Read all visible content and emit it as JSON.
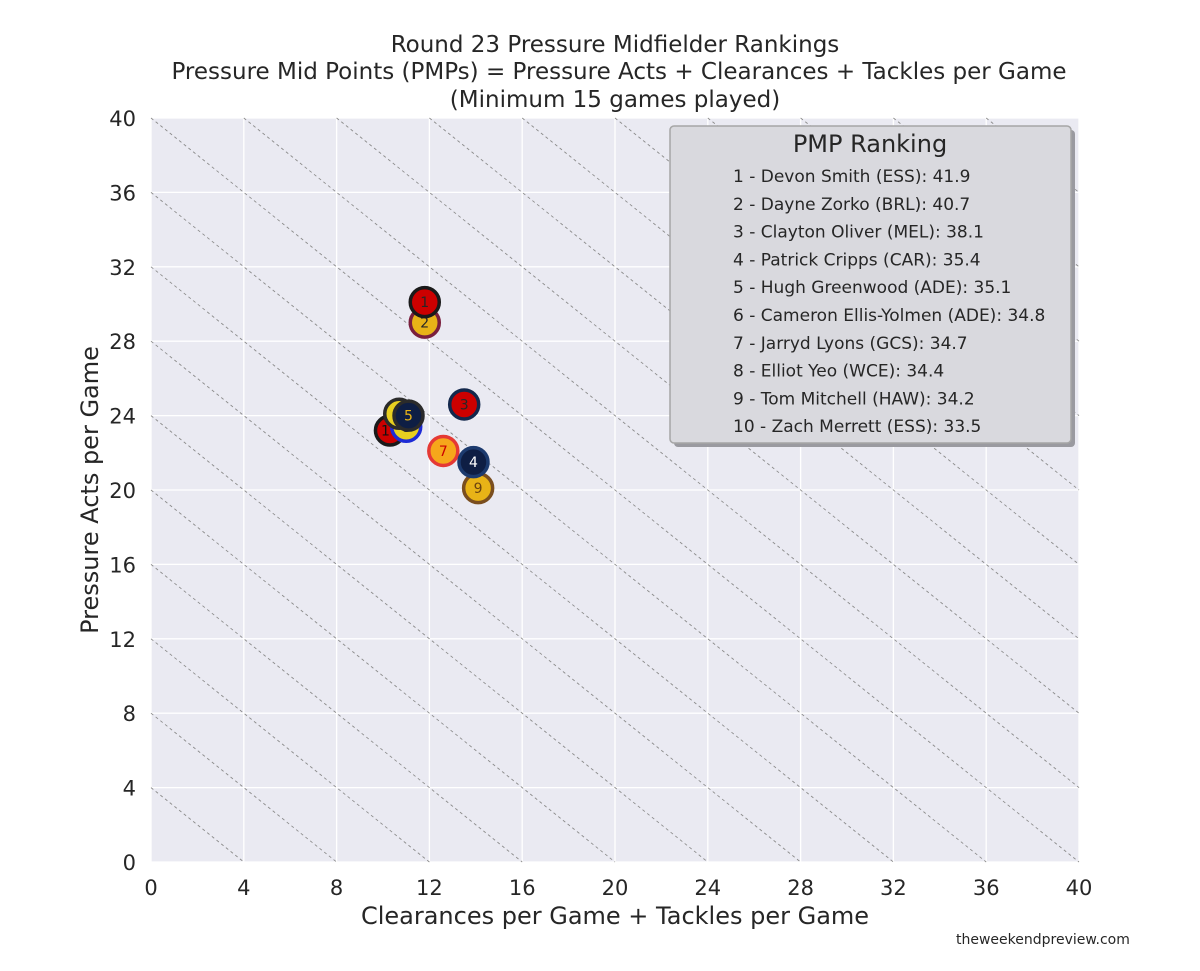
{
  "chart_data": {
    "type": "scatter",
    "title": [
      "Round 23 Pressure Midfielder Rankings",
      "Pressure Mid Points (PMPs) = Pressure Acts + Clearances + Tackles per Game",
      "(Minimum 15 games played)"
    ],
    "xlabel": "Clearances per Game + Tackles per Game",
    "ylabel": "Pressure Acts per Game",
    "xlim": [
      0,
      40
    ],
    "ylim": [
      0,
      40
    ],
    "xticks": [
      "0",
      "4",
      "8",
      "12",
      "16",
      "20",
      "24",
      "28",
      "32",
      "36",
      "40"
    ],
    "yticks": [
      "0",
      "4",
      "8",
      "12",
      "16",
      "20",
      "24",
      "28",
      "32",
      "36",
      "40"
    ],
    "grid": true,
    "iso_lines": [
      4,
      8,
      12,
      16,
      20,
      24,
      28,
      32,
      36,
      40,
      44,
      48,
      52,
      56,
      60,
      64,
      68,
      72,
      76,
      80
    ],
    "points": [
      {
        "label": "1",
        "x": 11.8,
        "y": 30.1,
        "fill": "#cc0000",
        "edge": "#1a1a1a",
        "text": "#262626"
      },
      {
        "label": "2",
        "x": 11.8,
        "y": 29.0,
        "fill": "#e8b317",
        "edge": "#7a1f3d",
        "text": "#262626"
      },
      {
        "label": "3",
        "x": 13.5,
        "y": 24.6,
        "fill": "#cc0000",
        "edge": "#13284c",
        "text": "#262626"
      },
      {
        "label": "4",
        "x": 13.9,
        "y": 21.5,
        "fill": "#0e1e44",
        "edge": "#1c3a6e",
        "text": "#ffffff"
      },
      {
        "label": "5",
        "x": 11.1,
        "y": 24.0,
        "fill": "#0e1e44",
        "edge": "#2b2b2b",
        "text": "#e8b317"
      },
      {
        "label": "6",
        "x": 10.7,
        "y": 24.1,
        "fill": "#e8d020",
        "edge": "#2b2b2b",
        "text": "#cc0000"
      },
      {
        "label": "7",
        "x": 12.6,
        "y": 22.1,
        "fill": "#f6a71b",
        "edge": "#e53935",
        "text": "#cc0000"
      },
      {
        "label": "8",
        "x": 11.0,
        "y": 23.4,
        "fill": "#e8d020",
        "edge": "#1d2bd6",
        "text": "#262626"
      },
      {
        "label": "9",
        "x": 14.1,
        "y": 20.1,
        "fill": "#e8b317",
        "edge": "#7a4e1f",
        "text": "#6b4410"
      },
      {
        "label": "10",
        "x": 10.3,
        "y": 23.2,
        "fill": "#cc0000",
        "edge": "#1a1a1a",
        "text": "#111111"
      }
    ],
    "legend": {
      "title": "PMP Ranking",
      "position": "top-right",
      "entries": [
        "1 - Devon Smith (ESS): 41.9",
        "2 - Dayne Zorko (BRL): 40.7",
        "3 - Clayton Oliver (MEL): 38.1",
        "4 - Patrick Cripps (CAR): 35.4",
        "5 - Hugh Greenwood (ADE): 35.1",
        "6 - Cameron Ellis-Yolmen (ADE): 34.8",
        "7 - Jarryd Lyons (GCS): 34.7",
        "8 - Elliot Yeo (WCE): 34.4",
        "9 - Tom Mitchell (HAW): 34.2",
        "10 - Zach Merrett (ESS): 33.5"
      ]
    }
  },
  "credit": "theweekendpreview.com",
  "colors": {
    "plot_background": "#eaeaf2",
    "grid": "#ffffff",
    "iso_line": "#8c8c8c",
    "legend_background": "#d9d9de",
    "legend_border": "#a6a6a6"
  }
}
